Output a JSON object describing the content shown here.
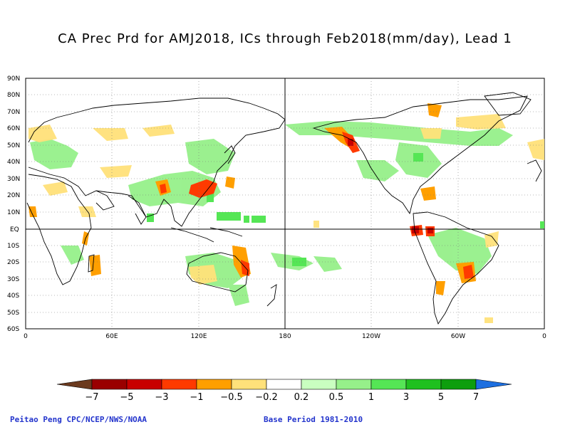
{
  "title": "CA Prec Prd for AMJ2018, ICs through Feb2018(mm/day), Lead 1",
  "map": {
    "lat_ticks": [
      "90N",
      "80N",
      "70N",
      "60N",
      "50N",
      "40N",
      "30N",
      "20N",
      "10N",
      "EQ",
      "10S",
      "20S",
      "30S",
      "40S",
      "50S",
      "60S"
    ],
    "lon_ticks": [
      "0",
      "60E",
      "120E",
      "180",
      "120W",
      "60W",
      "0"
    ]
  },
  "colorbar": {
    "labels": [
      "−7",
      "−5",
      "−3",
      "−1",
      "−0.5",
      "−0.2",
      "0.2",
      "0.5",
      "1",
      "3",
      "5",
      "7"
    ],
    "colors": {
      "low_arrow": "#6b3a1e",
      "bins": [
        "#9a0000",
        "#c80000",
        "#ff3a00",
        "#ff9f00",
        "#ffe17a",
        "#ffffff",
        "#c9ffc0",
        "#96f08a",
        "#55e655",
        "#1fc01f",
        "#0d9e0d"
      ],
      "high_arrow": "#1d6fe0"
    }
  },
  "footer": {
    "left": "Peitao Peng CPC/NCEP/NWS/NOAA",
    "right": "Base Period 1981-2010"
  }
}
